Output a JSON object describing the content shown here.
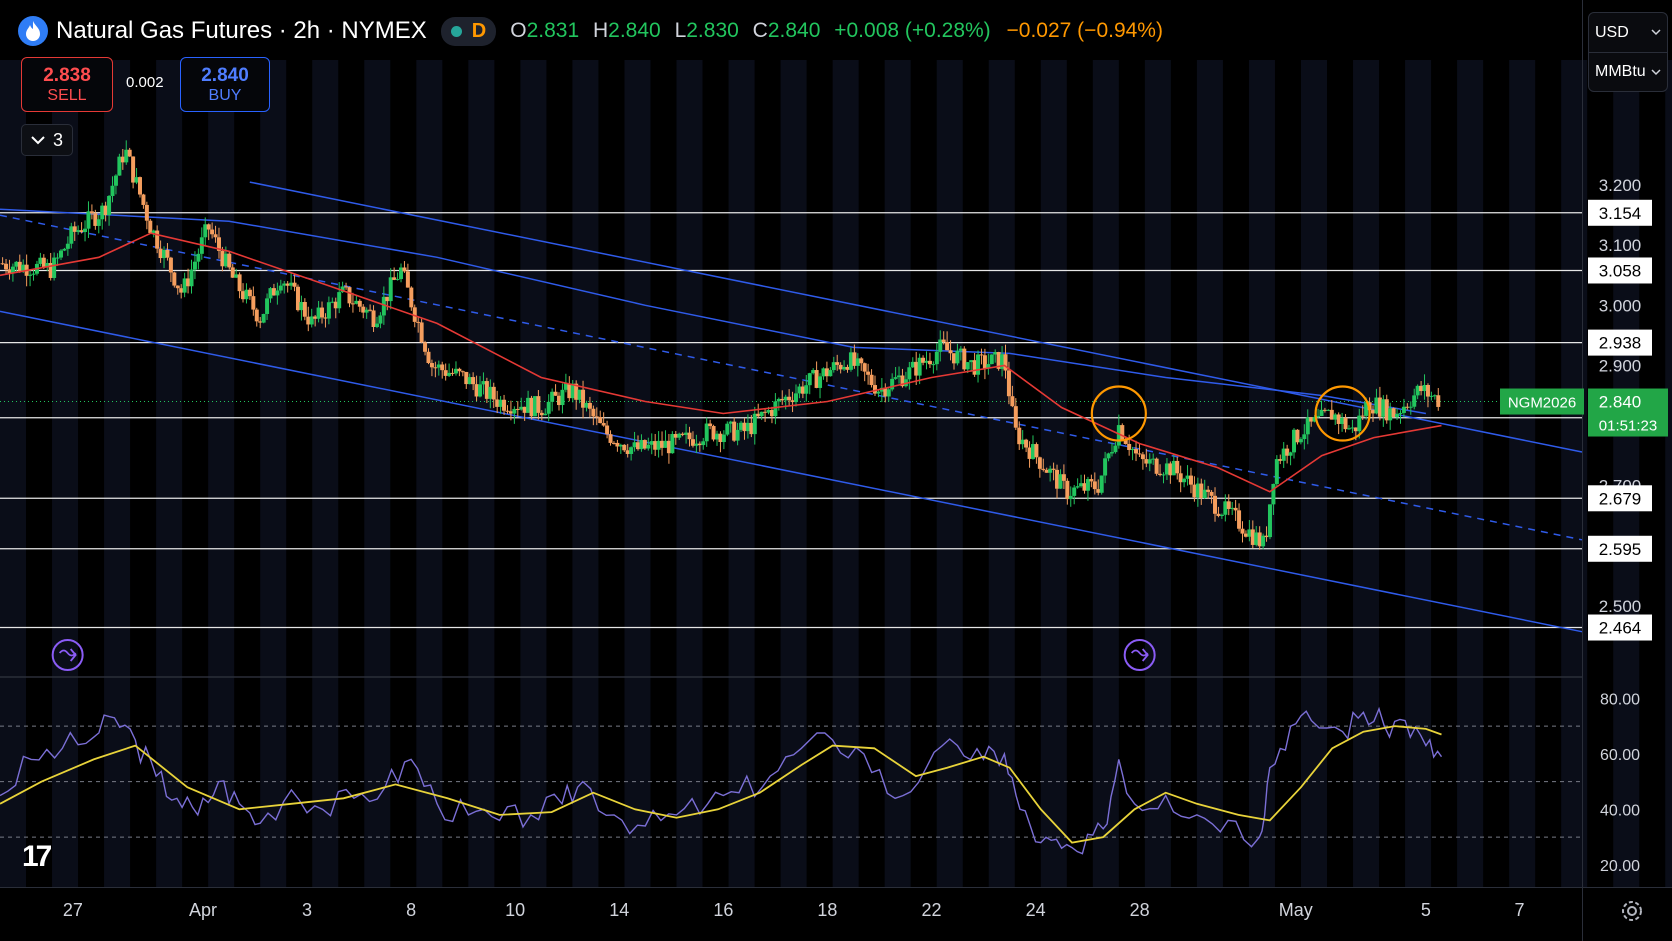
{
  "header": {
    "title": "Natural Gas Futures · 2h · NYMEX",
    "status_letter": "D",
    "ohlc": {
      "o_label": "O",
      "o": "2.831",
      "h_label": "H",
      "h": "2.840",
      "l_label": "L",
      "l": "2.830",
      "c_label": "C",
      "c": "2.840",
      "change": "+0.008 (+0.28%)",
      "change2": "−0.027 (−0.94%)"
    }
  },
  "trade": {
    "sell_price": "2.838",
    "sell_label": "SELL",
    "spread": "0.002",
    "buy_price": "2.840",
    "buy_label": "BUY",
    "collapse_count": "3"
  },
  "units": {
    "currency": "USD",
    "unit": "MMBtu"
  },
  "colors": {
    "up": "#22c55e",
    "down": "#f59e5e",
    "ma": "#e53935",
    "channel": "#2f5bea",
    "rsi": "#7b6fd6",
    "rsi_ma": "#e8d33a",
    "hline": "#e6e6e6",
    "circle": "#ff9800",
    "marker": "#8b5cf6"
  },
  "chart_data": [
    {
      "type": "candlestick",
      "title": "Natural Gas Futures · 2h · NYMEX",
      "ylim": [
        2.385,
        3.325
      ],
      "price_scale_ticks": [
        3.2,
        3.1,
        3.0,
        2.9,
        2.7,
        2.5
      ],
      "price_scale_labels": [
        "3.200",
        "3.100",
        "3.000",
        "2.900",
        "2.700",
        "2.500"
      ],
      "x_ticks": [
        {
          "label": "27",
          "x": 0.0
        },
        {
          "label": "Apr",
          "x": 2.5
        },
        {
          "label": "3",
          "x": 4.5
        },
        {
          "label": "8",
          "x": 6.5
        },
        {
          "label": "10",
          "x": 8.5
        },
        {
          "label": "14",
          "x": 10.5
        },
        {
          "label": "16",
          "x": 12.5
        },
        {
          "label": "18",
          "x": 14.5
        },
        {
          "label": "22",
          "x": 16.5
        },
        {
          "label": "24",
          "x": 18.5
        },
        {
          "label": "28",
          "x": 20.5
        },
        {
          "label": "May",
          "x": 23.5
        },
        {
          "label": "5",
          "x": 26.0
        },
        {
          "label": "7",
          "x": 27.8
        }
      ],
      "x_range": [
        -1.4,
        29.0
      ],
      "horizontal_levels": [
        3.154,
        3.058,
        2.938,
        2.813,
        2.679,
        2.595,
        2.464
      ],
      "horizontal_level_labels": [
        "3.154",
        "3.058",
        "2.938",
        "2.813",
        "2.679",
        "2.595",
        "2.464"
      ],
      "current_price": {
        "value": 2.84,
        "label": "2.840",
        "symbol": "NGM2026",
        "countdown": "01:51:23"
      },
      "price_path": [
        {
          "x": -1.4,
          "y": 3.07
        },
        {
          "x": -0.4,
          "y": 3.06
        },
        {
          "x": 0.0,
          "y": 3.12
        },
        {
          "x": 0.6,
          "y": 3.16
        },
        {
          "x": 1.0,
          "y": 3.26
        },
        {
          "x": 1.5,
          "y": 3.13
        },
        {
          "x": 2.1,
          "y": 3.02
        },
        {
          "x": 2.6,
          "y": 3.13
        },
        {
          "x": 3.1,
          "y": 3.04
        },
        {
          "x": 3.6,
          "y": 2.98
        },
        {
          "x": 4.0,
          "y": 3.05
        },
        {
          "x": 4.6,
          "y": 2.97
        },
        {
          "x": 5.2,
          "y": 3.02
        },
        {
          "x": 5.8,
          "y": 2.98
        },
        {
          "x": 6.3,
          "y": 3.06
        },
        {
          "x": 6.9,
          "y": 2.9
        },
        {
          "x": 7.5,
          "y": 2.88
        },
        {
          "x": 8.2,
          "y": 2.84
        },
        {
          "x": 9.0,
          "y": 2.83
        },
        {
          "x": 9.6,
          "y": 2.86
        },
        {
          "x": 10.2,
          "y": 2.79
        },
        {
          "x": 10.8,
          "y": 2.76
        },
        {
          "x": 11.6,
          "y": 2.77
        },
        {
          "x": 12.2,
          "y": 2.79
        },
        {
          "x": 12.9,
          "y": 2.79
        },
        {
          "x": 13.6,
          "y": 2.84
        },
        {
          "x": 14.3,
          "y": 2.88
        },
        {
          "x": 14.9,
          "y": 2.91
        },
        {
          "x": 15.5,
          "y": 2.86
        },
        {
          "x": 16.1,
          "y": 2.89
        },
        {
          "x": 16.7,
          "y": 2.93
        },
        {
          "x": 17.3,
          "y": 2.9
        },
        {
          "x": 17.9,
          "y": 2.91
        },
        {
          "x": 18.1,
          "y": 2.79
        },
        {
          "x": 18.6,
          "y": 2.74
        },
        {
          "x": 19.1,
          "y": 2.69
        },
        {
          "x": 19.7,
          "y": 2.7
        },
        {
          "x": 20.1,
          "y": 2.8
        },
        {
          "x": 20.5,
          "y": 2.74
        },
        {
          "x": 21.1,
          "y": 2.73
        },
        {
          "x": 21.8,
          "y": 2.68
        },
        {
          "x": 22.4,
          "y": 2.64
        },
        {
          "x": 22.9,
          "y": 2.6
        },
        {
          "x": 23.1,
          "y": 2.74
        },
        {
          "x": 23.6,
          "y": 2.79
        },
        {
          "x": 24.2,
          "y": 2.82
        },
        {
          "x": 24.6,
          "y": 2.79
        },
        {
          "x": 24.9,
          "y": 2.84
        },
        {
          "x": 25.4,
          "y": 2.82
        },
        {
          "x": 25.9,
          "y": 2.86
        },
        {
          "x": 26.3,
          "y": 2.84
        }
      ],
      "moving_average": [
        {
          "x": -1.4,
          "y": 3.05
        },
        {
          "x": 0.5,
          "y": 3.08
        },
        {
          "x": 1.5,
          "y": 3.12
        },
        {
          "x": 3.0,
          "y": 3.09
        },
        {
          "x": 5.0,
          "y": 3.03
        },
        {
          "x": 7.0,
          "y": 2.97
        },
        {
          "x": 9.0,
          "y": 2.88
        },
        {
          "x": 11.0,
          "y": 2.84
        },
        {
          "x": 12.5,
          "y": 2.82
        },
        {
          "x": 14.5,
          "y": 2.84
        },
        {
          "x": 16.5,
          "y": 2.88
        },
        {
          "x": 17.9,
          "y": 2.9
        },
        {
          "x": 19.0,
          "y": 2.83
        },
        {
          "x": 20.5,
          "y": 2.77
        },
        {
          "x": 22.0,
          "y": 2.73
        },
        {
          "x": 23.0,
          "y": 2.69
        },
        {
          "x": 24.0,
          "y": 2.75
        },
        {
          "x": 25.0,
          "y": 2.78
        },
        {
          "x": 26.3,
          "y": 2.8
        }
      ],
      "channel_lines": [
        {
          "style": "solid",
          "points": [
            {
              "x": 3.4,
              "y": 3.205
            },
            {
              "x": 29.0,
              "y": 2.756
            }
          ]
        },
        {
          "style": "solid",
          "points": [
            {
              "x": -1.4,
              "y": 2.99
            },
            {
              "x": 29.0,
              "y": 2.457
            }
          ]
        },
        {
          "style": "dashed",
          "points": [
            {
              "x": -1.4,
              "y": 3.15
            },
            {
              "x": 29.0,
              "y": 2.61
            }
          ]
        },
        {
          "style": "curve",
          "points": [
            {
              "x": -1.4,
              "y": 3.16
            },
            {
              "x": 3.0,
              "y": 3.14
            },
            {
              "x": 7.0,
              "y": 3.08
            },
            {
              "x": 11.0,
              "y": 3.0
            },
            {
              "x": 15.0,
              "y": 2.93
            },
            {
              "x": 18.0,
              "y": 2.92
            },
            {
              "x": 21.0,
              "y": 2.88
            },
            {
              "x": 24.0,
              "y": 2.85
            },
            {
              "x": 26.0,
              "y": 2.82
            }
          ]
        }
      ],
      "highlight_circles": [
        {
          "x": 20.1,
          "y": 2.82
        },
        {
          "x": 24.4,
          "y": 2.82
        }
      ],
      "event_markers": [
        {
          "x": -0.1
        },
        {
          "x": 20.5
        }
      ]
    },
    {
      "type": "line",
      "indicator": "RSI",
      "ylim": [
        12,
        87
      ],
      "ticks": [
        80,
        60,
        40,
        20
      ],
      "tick_labels": [
        "80.00",
        "60.00",
        "40.00",
        "20.00"
      ],
      "bands": [
        70,
        50,
        30
      ],
      "series": [
        {
          "values": [
            {
              "x": -1.4,
              "y": 45
            },
            {
              "x": -0.8,
              "y": 58
            },
            {
              "x": -0.2,
              "y": 62
            },
            {
              "x": 0.4,
              "y": 66
            },
            {
              "x": 0.8,
              "y": 73
            },
            {
              "x": 1.2,
              "y": 65
            },
            {
              "x": 1.6,
              "y": 52
            },
            {
              "x": 2.0,
              "y": 44
            },
            {
              "x": 2.4,
              "y": 38
            },
            {
              "x": 2.8,
              "y": 50
            },
            {
              "x": 3.2,
              "y": 42
            },
            {
              "x": 3.6,
              "y": 35
            },
            {
              "x": 4.2,
              "y": 47
            },
            {
              "x": 4.8,
              "y": 40
            },
            {
              "x": 5.4,
              "y": 44
            },
            {
              "x": 6.0,
              "y": 48
            },
            {
              "x": 6.5,
              "y": 58
            },
            {
              "x": 7.0,
              "y": 42
            },
            {
              "x": 7.6,
              "y": 38
            },
            {
              "x": 8.2,
              "y": 36
            },
            {
              "x": 8.8,
              "y": 38
            },
            {
              "x": 9.4,
              "y": 42
            },
            {
              "x": 9.8,
              "y": 50
            },
            {
              "x": 10.4,
              "y": 38
            },
            {
              "x": 11.0,
              "y": 34
            },
            {
              "x": 11.6,
              "y": 38
            },
            {
              "x": 12.2,
              "y": 42
            },
            {
              "x": 12.8,
              "y": 46
            },
            {
              "x": 13.4,
              "y": 52
            },
            {
              "x": 14.0,
              "y": 62
            },
            {
              "x": 14.6,
              "y": 65
            },
            {
              "x": 15.2,
              "y": 60
            },
            {
              "x": 15.8,
              "y": 44
            },
            {
              "x": 16.4,
              "y": 55
            },
            {
              "x": 17.0,
              "y": 63
            },
            {
              "x": 17.5,
              "y": 58
            },
            {
              "x": 17.9,
              "y": 60
            },
            {
              "x": 18.2,
              "y": 40
            },
            {
              "x": 18.6,
              "y": 28
            },
            {
              "x": 19.0,
              "y": 26
            },
            {
              "x": 19.4,
              "y": 24
            },
            {
              "x": 19.8,
              "y": 33
            },
            {
              "x": 20.1,
              "y": 58
            },
            {
              "x": 20.4,
              "y": 42
            },
            {
              "x": 21.0,
              "y": 45
            },
            {
              "x": 21.6,
              "y": 38
            },
            {
              "x": 22.2,
              "y": 36
            },
            {
              "x": 22.8,
              "y": 30
            },
            {
              "x": 23.0,
              "y": 55
            },
            {
              "x": 23.4,
              "y": 70
            },
            {
              "x": 23.8,
              "y": 72
            },
            {
              "x": 24.4,
              "y": 68
            },
            {
              "x": 24.8,
              "y": 75
            },
            {
              "x": 25.2,
              "y": 70
            },
            {
              "x": 25.6,
              "y": 72
            },
            {
              "x": 26.0,
              "y": 63
            },
            {
              "x": 26.3,
              "y": 59
            }
          ]
        },
        {
          "values": [
            {
              "x": -1.4,
              "y": 42
            },
            {
              "x": -0.6,
              "y": 50
            },
            {
              "x": 0.4,
              "y": 58
            },
            {
              "x": 1.2,
              "y": 63
            },
            {
              "x": 2.2,
              "y": 48
            },
            {
              "x": 3.2,
              "y": 40
            },
            {
              "x": 4.2,
              "y": 42
            },
            {
              "x": 5.2,
              "y": 44
            },
            {
              "x": 6.2,
              "y": 49
            },
            {
              "x": 7.2,
              "y": 44
            },
            {
              "x": 8.2,
              "y": 38
            },
            {
              "x": 9.2,
              "y": 39
            },
            {
              "x": 10.0,
              "y": 46
            },
            {
              "x": 10.8,
              "y": 40
            },
            {
              "x": 11.6,
              "y": 37
            },
            {
              "x": 12.4,
              "y": 40
            },
            {
              "x": 13.2,
              "y": 46
            },
            {
              "x": 14.0,
              "y": 56
            },
            {
              "x": 14.6,
              "y": 63
            },
            {
              "x": 15.4,
              "y": 62
            },
            {
              "x": 16.2,
              "y": 52
            },
            {
              "x": 16.8,
              "y": 55
            },
            {
              "x": 17.5,
              "y": 59
            },
            {
              "x": 18.0,
              "y": 55
            },
            {
              "x": 18.6,
              "y": 40
            },
            {
              "x": 19.2,
              "y": 28
            },
            {
              "x": 19.8,
              "y": 30
            },
            {
              "x": 20.4,
              "y": 40
            },
            {
              "x": 21.0,
              "y": 46
            },
            {
              "x": 21.6,
              "y": 42
            },
            {
              "x": 22.4,
              "y": 38
            },
            {
              "x": 23.0,
              "y": 36
            },
            {
              "x": 23.6,
              "y": 48
            },
            {
              "x": 24.2,
              "y": 62
            },
            {
              "x": 24.8,
              "y": 68
            },
            {
              "x": 25.4,
              "y": 70
            },
            {
              "x": 26.0,
              "y": 69
            },
            {
              "x": 26.3,
              "y": 67
            }
          ]
        }
      ]
    }
  ]
}
